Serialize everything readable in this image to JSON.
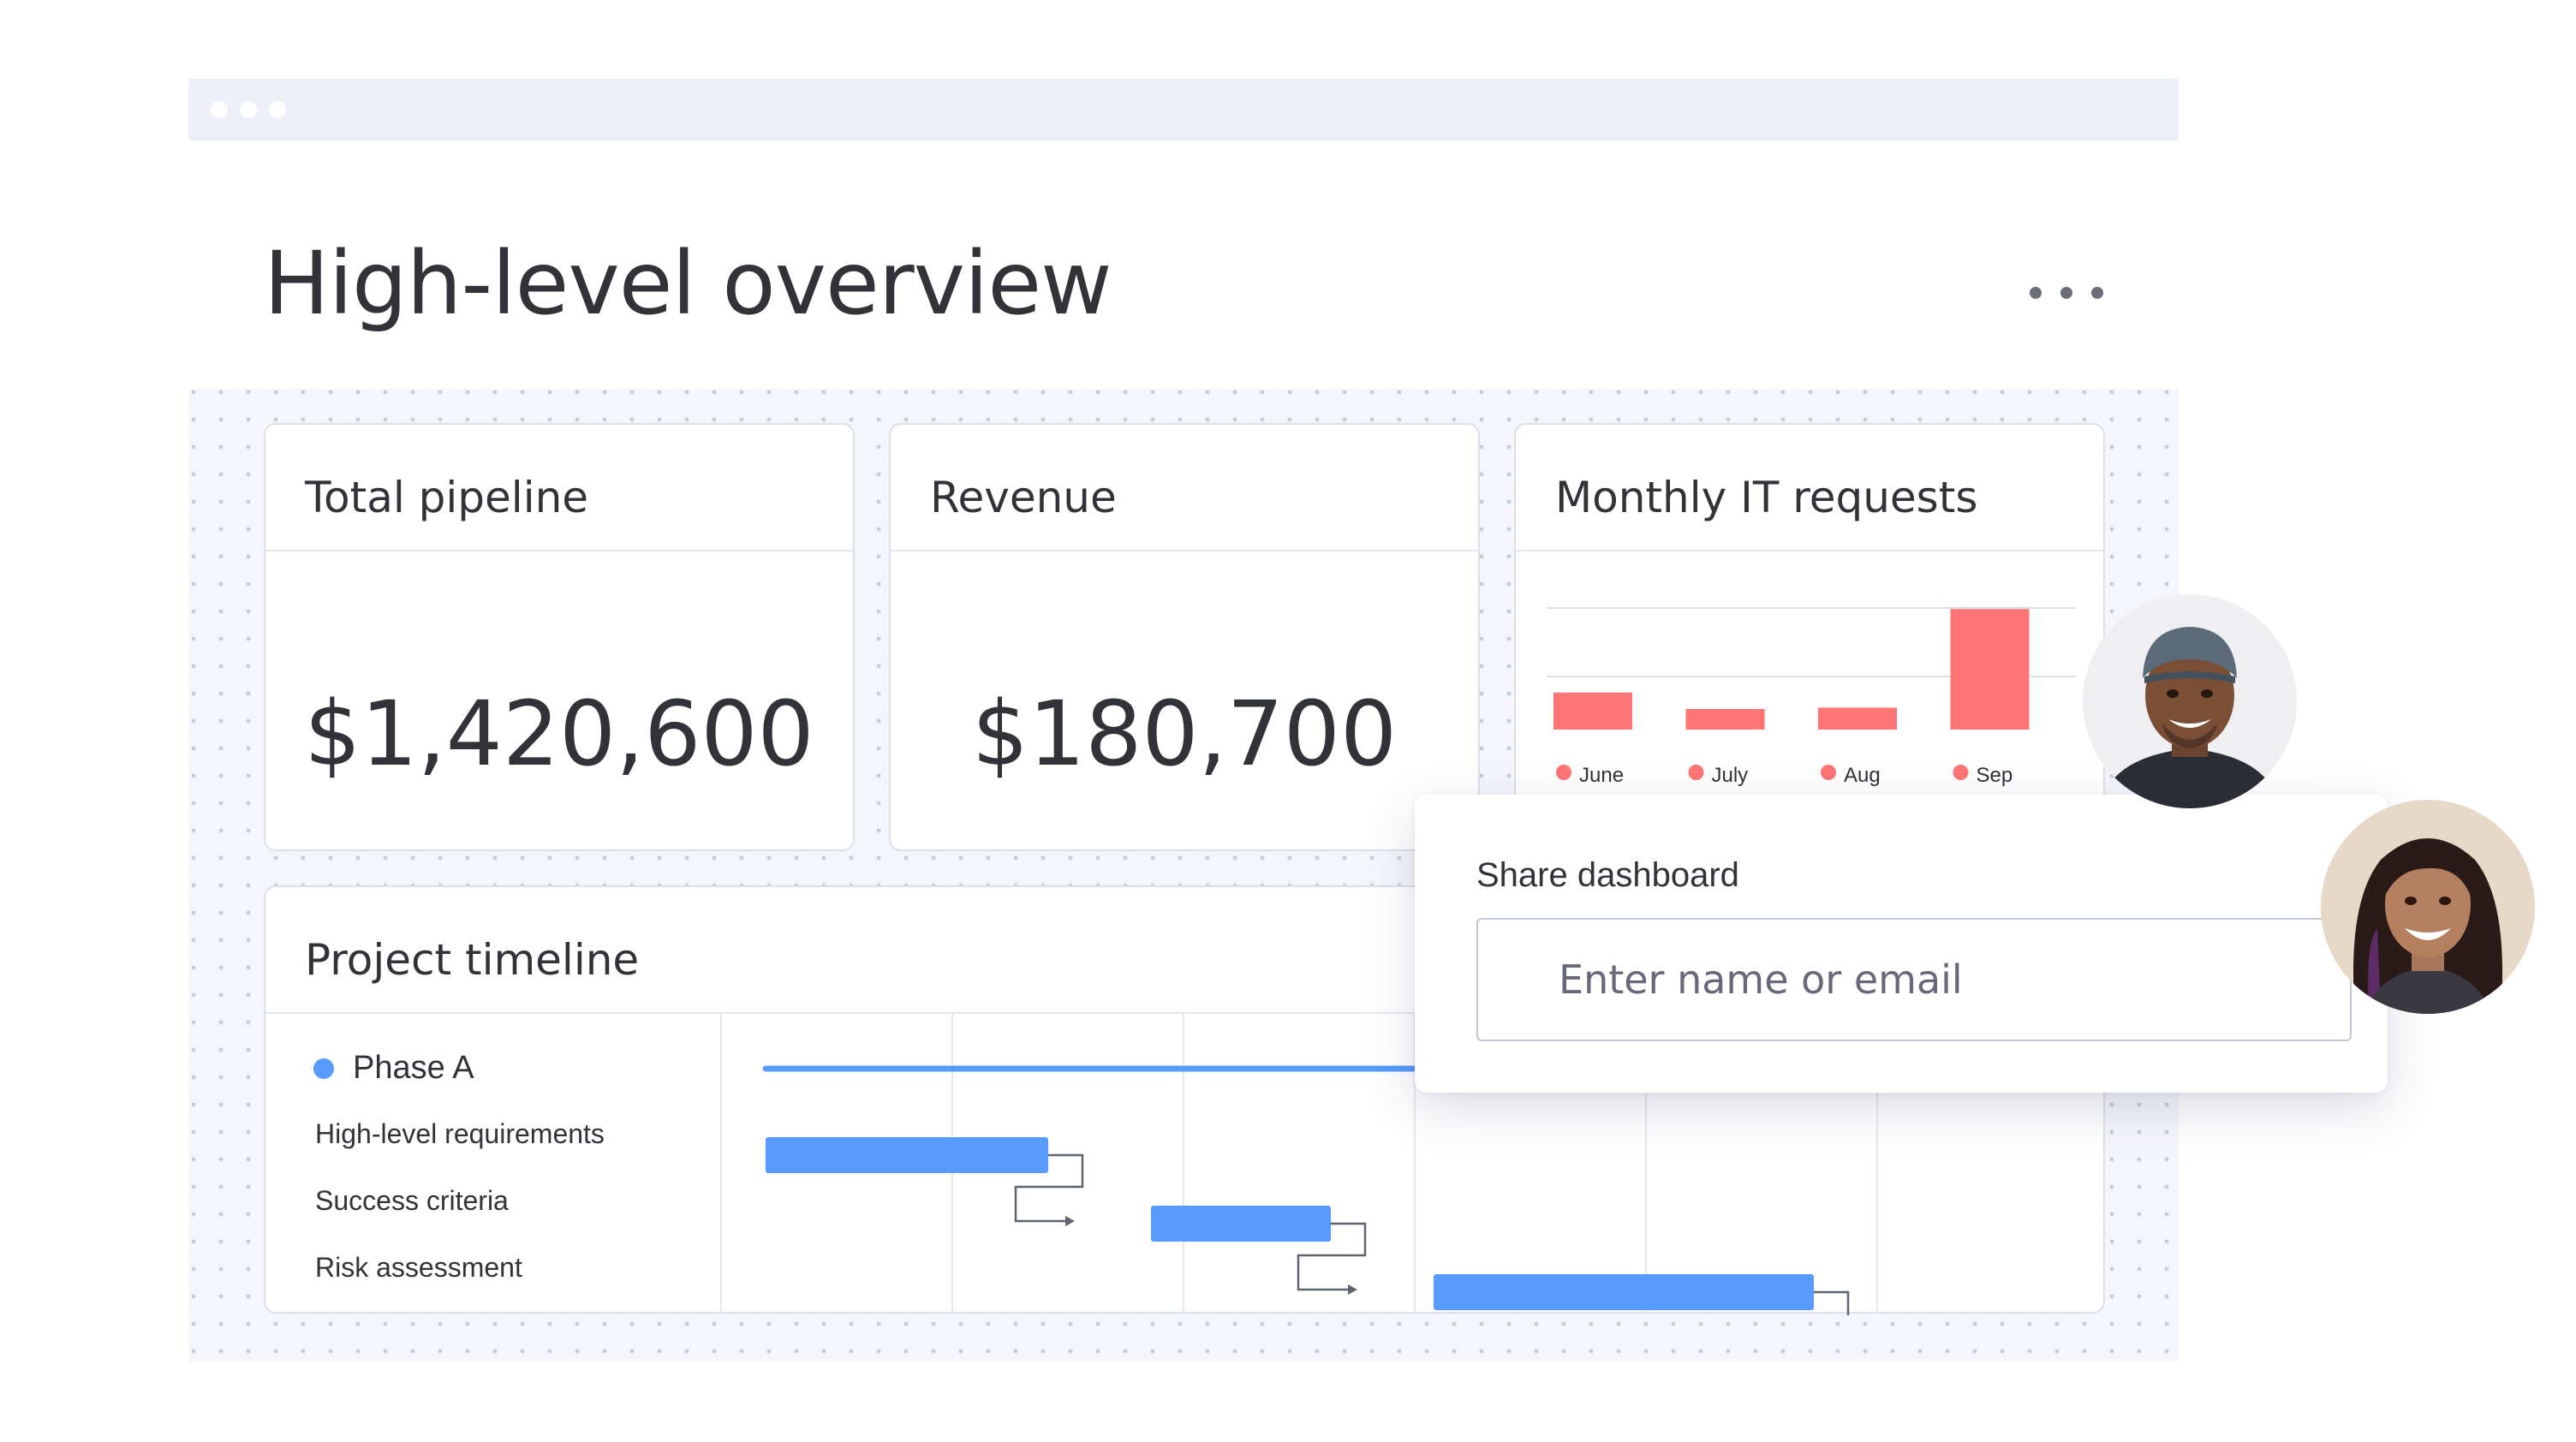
{
  "page": {
    "title": "High-level overview",
    "more_menu_icon": "more-dots-icon"
  },
  "cards": {
    "pipeline": {
      "title": "Total pipeline",
      "value": "$1,420,600"
    },
    "revenue": {
      "title": "Revenue",
      "value": "$180,700"
    },
    "it_requests": {
      "title": "Monthly IT requests"
    }
  },
  "chart_data": {
    "type": "bar",
    "title": "Monthly IT requests",
    "categories": [
      "June",
      "July",
      "Aug",
      "Sep"
    ],
    "values": [
      27,
      15,
      16,
      88
    ],
    "ylim": [
      0,
      100
    ],
    "grid": true,
    "legend": "bottom",
    "color": "#ff7575"
  },
  "timeline": {
    "title": "Project timeline",
    "phase": "Phase A",
    "tasks": [
      "High-level requirements",
      "Success criteria",
      "Risk assessment"
    ],
    "phase_color": "#579bfc",
    "bar_color": "#579bfc"
  },
  "share": {
    "title": "Share dashboard",
    "placeholder": "Enter name or email"
  },
  "colors": {
    "accent": "#579bfc",
    "chart": "#ff7575",
    "canvas": "#f5f6fb"
  }
}
